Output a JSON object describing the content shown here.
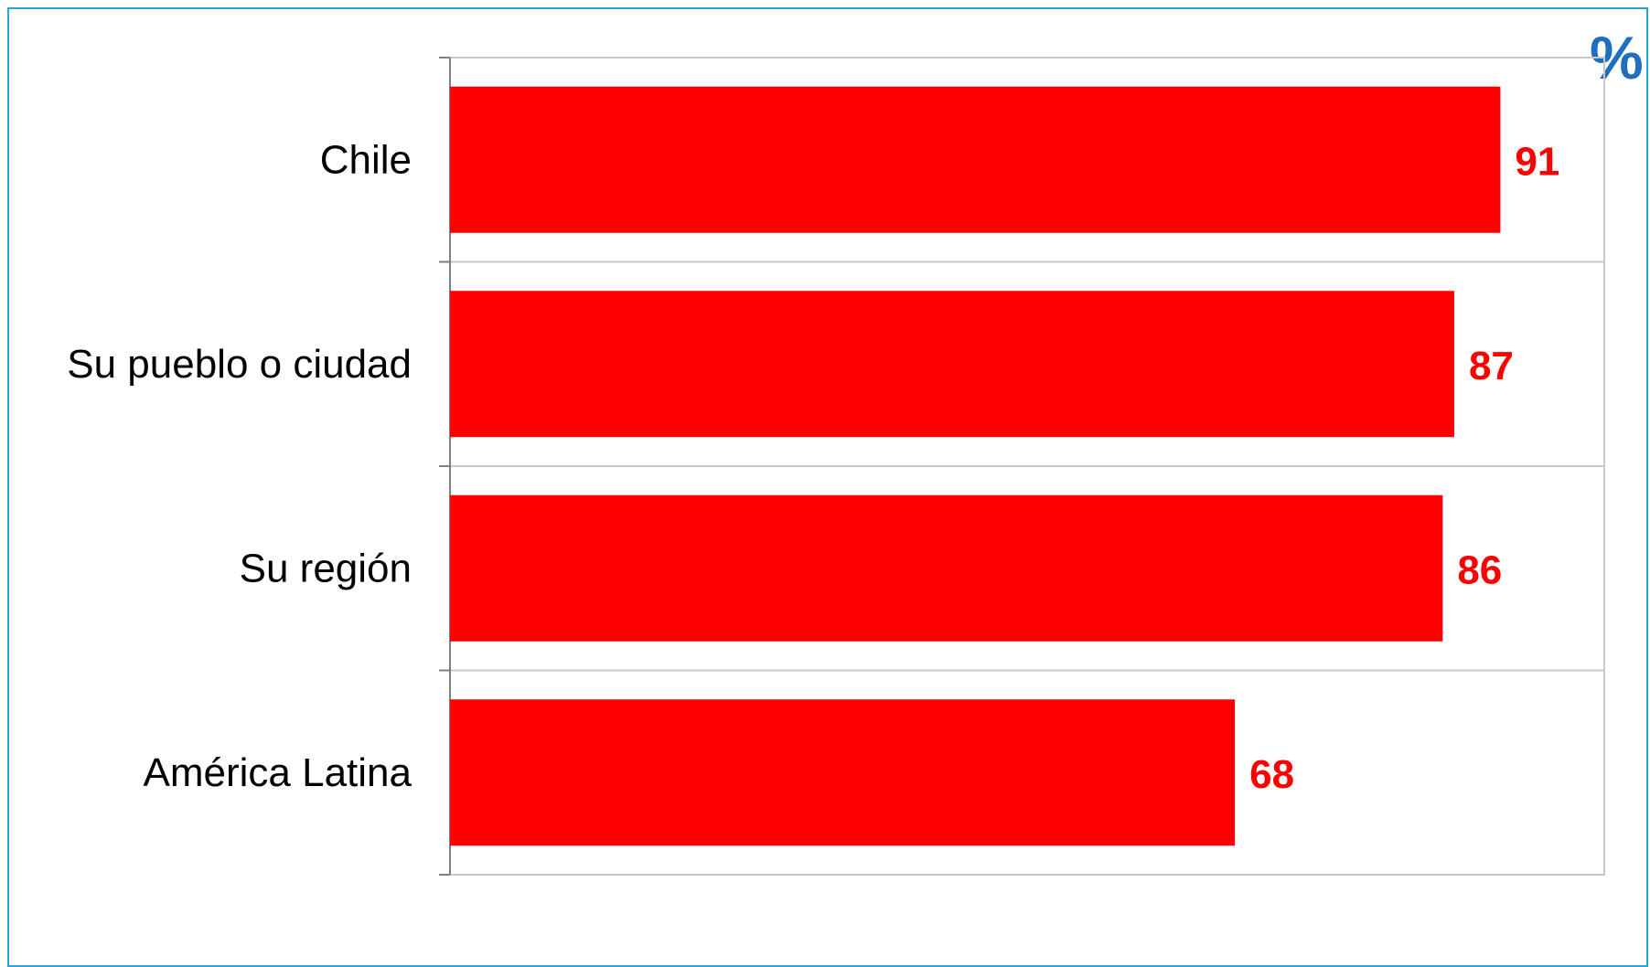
{
  "unit_label": "%",
  "colors": {
    "bar": "#ff0000",
    "value_label": "#ff0000",
    "unit_label": "#1f6fbf",
    "frame": "#2aa6d9",
    "plot_border": "#c8c8c8",
    "axis": "#808080"
  },
  "chart_data": {
    "type": "bar",
    "orientation": "horizontal",
    "categories": [
      "Chile",
      "Su pueblo o ciudad",
      "Su región",
      "América Latina"
    ],
    "values": [
      91,
      87,
      86,
      68
    ],
    "xlim": [
      0,
      100
    ],
    "grid": "horizontal separators between categories",
    "legend": "none",
    "data_labels": true
  }
}
